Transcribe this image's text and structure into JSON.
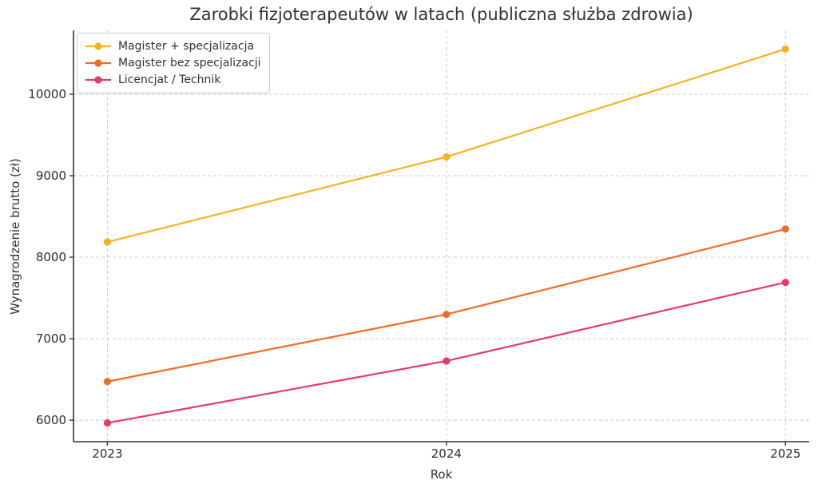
{
  "chart_data": {
    "type": "line",
    "title": "Zarobki fizjoterapeutów w latach (publiczna służba zdrowia)",
    "xlabel": "Rok",
    "ylabel": "Wynagrodzenie brutto (zł)",
    "x": [
      2023,
      2024,
      2025
    ],
    "series": [
      {
        "name": "Magister + specjalizacja",
        "color": "#F4B41F",
        "values": [
          8187.09,
          9230.57,
          10554.42
        ]
      },
      {
        "name": "Magister bez specjalizacji",
        "color": "#EE6D22",
        "values": [
          6473.51,
          7298.59,
          8345.35
        ]
      },
      {
        "name": "Licencjat / Technik",
        "color": "#E63A64",
        "values": [
          5965.79,
          6726.15,
          7690.82
        ]
      }
    ],
    "xticks": [
      2023,
      2024,
      2025
    ],
    "yticks": [
      6000,
      7000,
      8000,
      9000,
      10000
    ],
    "xlim": [
      2022.9,
      2025.07
    ],
    "ylim": [
      5736,
      10784
    ],
    "grid": true,
    "legend_position": "upper left",
    "marker": "circle"
  },
  "style": {
    "background": "#ffffff",
    "grid_color": "#cccccc",
    "spine_color": "#333333",
    "text_color": "#2b2b2b",
    "legend_border_color": "#cccccc",
    "line_width": 2.2,
    "marker_radius": 4.6
  }
}
